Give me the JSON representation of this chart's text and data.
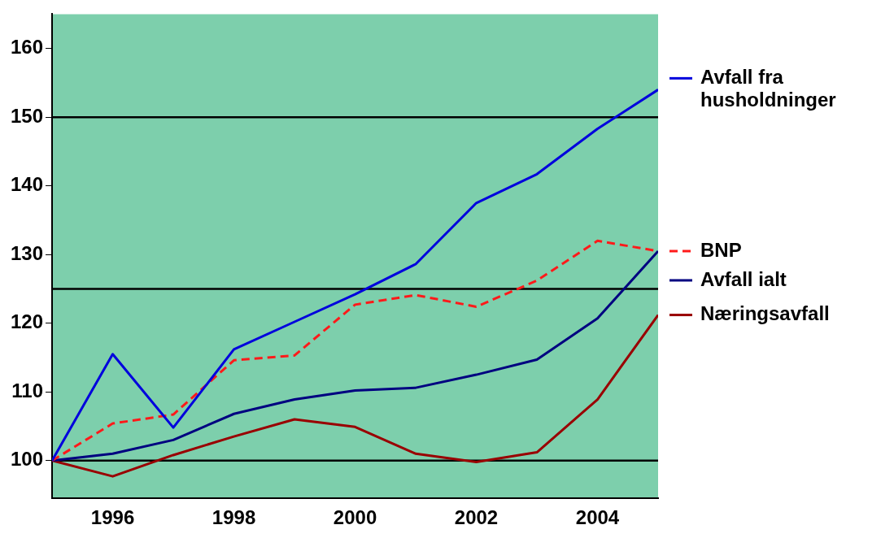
{
  "chart_data": {
    "type": "line",
    "x": [
      1995,
      1996,
      1997,
      1998,
      1999,
      2000,
      2001,
      2002,
      2003,
      2004,
      2005
    ],
    "series": [
      {
        "name": "Avfall fra husholdninger",
        "color": "#0000dd",
        "values": [
          100,
          115.5,
          104.8,
          116.2,
          120.2,
          124.2,
          128.6,
          137.5,
          141.7,
          148.3,
          154
        ]
      },
      {
        "name": "BNP",
        "color": "#ff1a1a",
        "line_style": "dashed",
        "values": [
          100,
          105.4,
          106.7,
          114.6,
          115.3,
          122.7,
          124.1,
          122.4,
          126.2,
          132,
          130.5
        ]
      },
      {
        "name": "Avfall ialt",
        "color": "#000080",
        "values": [
          100,
          101,
          103,
          106.8,
          108.9,
          110.2,
          110.6,
          112.5,
          114.7,
          120.7,
          130.5
        ]
      },
      {
        "name": "Næringsavfall",
        "color": "#990000",
        "values": [
          100,
          97.7,
          100.8,
          103.5,
          106,
          104.9,
          101,
          99.8,
          101.2,
          108.9,
          121.2
        ]
      }
    ],
    "xlim": [
      1995,
      2005
    ],
    "xticks": [
      1996,
      1998,
      2000,
      2002,
      2004
    ],
    "ylim": [
      94.5,
      165
    ],
    "yticks": [
      100,
      110,
      120,
      130,
      140,
      150,
      160
    ],
    "ref_lines": [
      {
        "axis": "y",
        "value": 100,
        "color": "#000000"
      },
      {
        "axis": "y",
        "value": 125,
        "color": "#000000"
      },
      {
        "axis": "y",
        "value": 150,
        "color": "#000000"
      }
    ],
    "grid": false,
    "legend": "right",
    "marker": "none",
    "line_style": "solid"
  }
}
